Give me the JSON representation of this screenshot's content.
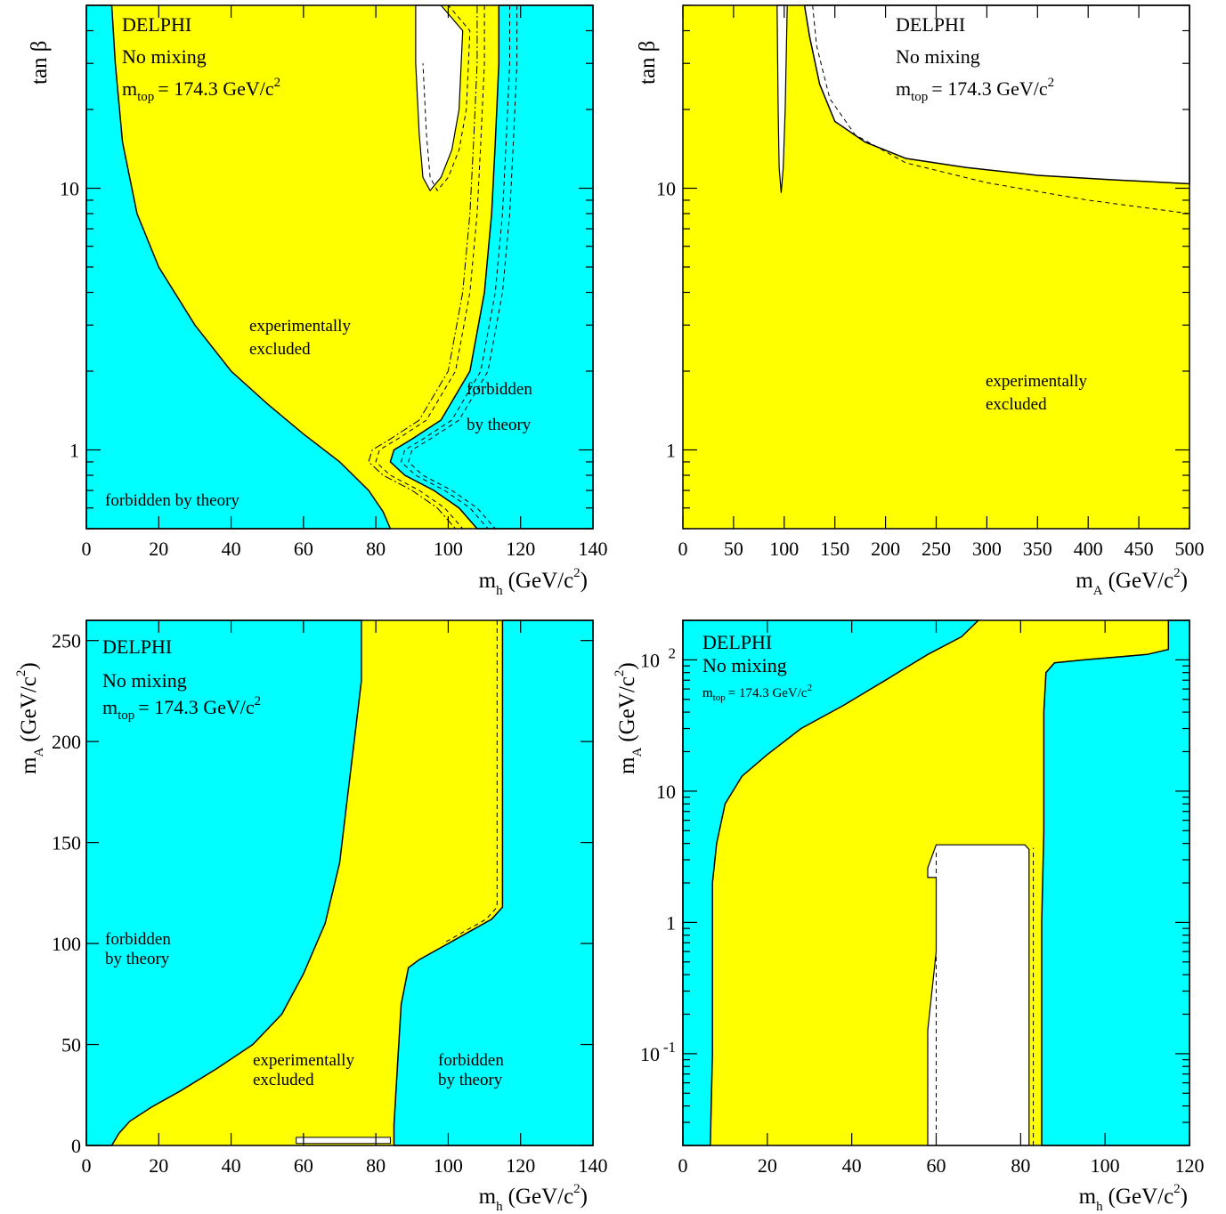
{
  "colors": {
    "allowed": "#ffffff",
    "excluded": "#ffff00",
    "theory": "#00ffff",
    "line": "#000000"
  },
  "chart_data": [
    {
      "type": "area",
      "panel": "top-left",
      "header": [
        "DELPHI",
        "No mixing",
        "m",
        "top",
        "= 174.3 GeV/c",
        "2"
      ],
      "xlabel": {
        "main": "m",
        "sub": "h",
        "unit": "(GeV/c",
        "sup": "2",
        "close": ")"
      },
      "ylabel": "tan β",
      "xlim": [
        0,
        140
      ],
      "ylim": [
        0.5,
        50
      ],
      "yscale": "log",
      "xticks": [
        "0",
        "20",
        "40",
        "60",
        "80",
        "100",
        "120",
        "140"
      ],
      "yticks": [
        "1",
        "10"
      ],
      "annotations": [
        "experimentally",
        "excluded",
        "forbidden",
        "by theory",
        "forbidden by theory"
      ],
      "regions": {
        "theory_left": [
          [
            7,
            50
          ],
          [
            8,
            30
          ],
          [
            10,
            15
          ],
          [
            14,
            8
          ],
          [
            20,
            5
          ],
          [
            30,
            3
          ],
          [
            40,
            2
          ],
          [
            50,
            1.5
          ],
          [
            60,
            1.15
          ],
          [
            70,
            0.9
          ],
          [
            78,
            0.7
          ],
          [
            82,
            0.58
          ],
          [
            84,
            0.5
          ]
        ],
        "theory_right": [
          [
            114,
            50
          ],
          [
            114,
            30
          ],
          [
            113,
            15
          ],
          [
            112,
            8
          ],
          [
            110,
            4
          ],
          [
            106,
            2
          ],
          [
            98,
            1.3
          ],
          [
            90,
            1.1
          ],
          [
            85,
            1
          ],
          [
            84,
            0.9
          ],
          [
            88,
            0.8
          ],
          [
            96,
            0.7
          ],
          [
            103,
            0.6
          ],
          [
            108,
            0.5
          ]
        ],
        "allowed_island": [
          [
            91,
            50
          ],
          [
            98,
            50
          ],
          [
            104,
            40
          ],
          [
            103,
            20
          ],
          [
            101,
            14
          ],
          [
            98,
            11
          ],
          [
            95,
            9.8
          ],
          [
            93,
            11
          ],
          [
            92,
            16
          ],
          [
            91,
            30
          ]
        ]
      }
    },
    {
      "type": "area",
      "panel": "top-right",
      "header": [
        "DELPHI",
        "No mixing",
        "m",
        "top",
        "= 174.3 GeV/c",
        "2"
      ],
      "xlabel": {
        "main": "m",
        "sub": "A",
        "unit": "(GeV/c",
        "sup": "2",
        "close": ")"
      },
      "ylabel": "tan β",
      "xlim": [
        0,
        500
      ],
      "ylim": [
        0.5,
        50
      ],
      "yscale": "log",
      "xticks": [
        "0",
        "50",
        "100",
        "150",
        "200",
        "250",
        "300",
        "350",
        "400",
        "450",
        "500"
      ],
      "yticks": [
        "1",
        "10"
      ],
      "annotations": [
        "experimentally",
        "excluded"
      ],
      "regions": {
        "allowed_top": [
          [
            120,
            50
          ],
          [
            125,
            38
          ],
          [
            135,
            25
          ],
          [
            150,
            18
          ],
          [
            180,
            15
          ],
          [
            220,
            13
          ],
          [
            280,
            12
          ],
          [
            350,
            11.2
          ],
          [
            420,
            10.8
          ],
          [
            500,
            10.4
          ],
          [
            500,
            50
          ]
        ],
        "allowed_strip": [
          [
            93,
            50
          ],
          [
            103,
            50
          ],
          [
            101,
            20
          ],
          [
            99,
            12
          ],
          [
            97,
            9.6
          ],
          [
            95,
            12
          ],
          [
            94,
            20
          ]
        ],
        "dashed_limit": [
          [
            128,
            50
          ],
          [
            132,
            35
          ],
          [
            145,
            22
          ],
          [
            170,
            16
          ],
          [
            220,
            12.5
          ],
          [
            300,
            10.5
          ],
          [
            400,
            9
          ],
          [
            500,
            8
          ]
        ]
      }
    },
    {
      "type": "area",
      "panel": "bottom-left",
      "header": [
        "DELPHI",
        "No mixing",
        "m",
        "top",
        "= 174.3 GeV/c",
        "2"
      ],
      "xlabel": {
        "main": "m",
        "sub": "h",
        "unit": "(GeV/c",
        "sup": "2",
        "close": ")"
      },
      "ylabel": {
        "main": "m",
        "sub": "A",
        "unit": "(GeV/c",
        "sup": "2",
        "close": ")"
      },
      "xlim": [
        0,
        140
      ],
      "ylim": [
        0,
        260
      ],
      "yscale": "linear",
      "xticks": [
        "0",
        "20",
        "40",
        "60",
        "80",
        "100",
        "120",
        "140"
      ],
      "yticks": [
        "0",
        "50",
        "100",
        "150",
        "200",
        "250"
      ],
      "annotations": [
        "forbidden",
        "by theory",
        "experimentally",
        "excluded",
        "forbidden",
        "by theory"
      ],
      "regions": {
        "theory_left": [
          [
            76,
            260
          ],
          [
            76,
            230
          ],
          [
            74,
            200
          ],
          [
            72,
            170
          ],
          [
            70,
            140
          ],
          [
            66,
            110
          ],
          [
            60,
            85
          ],
          [
            54,
            65
          ],
          [
            46,
            50
          ],
          [
            36,
            38
          ],
          [
            26,
            27
          ],
          [
            18,
            19
          ],
          [
            12,
            12
          ],
          [
            9,
            6
          ],
          [
            7,
            0
          ]
        ],
        "theory_right": [
          [
            115,
            260
          ],
          [
            115,
            118
          ],
          [
            112,
            112
          ],
          [
            100,
            100
          ],
          [
            92,
            92
          ],
          [
            89,
            88
          ],
          [
            87,
            70
          ],
          [
            86,
            40
          ],
          [
            85,
            10
          ],
          [
            85,
            0
          ]
        ]
      }
    },
    {
      "type": "area",
      "panel": "bottom-right",
      "header": [
        "DELPHI",
        "No mixing",
        "m",
        "top",
        "= 174.3 GeV/c",
        "2"
      ],
      "xlabel": {
        "main": "m",
        "sub": "h",
        "unit": "(GeV/c",
        "sup": "2",
        "close": ")"
      },
      "ylabel": {
        "main": "m",
        "sub": "A",
        "unit": "(GeV/c",
        "sup": "2",
        "close": ")"
      },
      "xlim": [
        0,
        120
      ],
      "ylim": [
        0.02,
        200
      ],
      "yscale": "log",
      "xticks": [
        "0",
        "20",
        "40",
        "60",
        "80",
        "100",
        "120"
      ],
      "yticks": [
        {
          "base": "10",
          "exp": "-1"
        },
        {
          "base": "1",
          "exp": ""
        },
        {
          "base": "10",
          "exp": ""
        },
        {
          "base": "10",
          "exp": "2"
        }
      ],
      "annotations": [],
      "regions": {
        "theory_left": [
          [
            70,
            200
          ],
          [
            66,
            150
          ],
          [
            58,
            110
          ],
          [
            48,
            70
          ],
          [
            38,
            45
          ],
          [
            28,
            30
          ],
          [
            20,
            19
          ],
          [
            14,
            13
          ],
          [
            10,
            8
          ],
          [
            8,
            4
          ],
          [
            7,
            2
          ],
          [
            7,
            0.5
          ],
          [
            7,
            0.1
          ],
          [
            6.5,
            0.02
          ]
        ],
        "theory_right": [
          [
            115,
            200
          ],
          [
            115,
            120
          ],
          [
            110,
            110
          ],
          [
            95,
            100
          ],
          [
            88,
            95
          ],
          [
            86,
            80
          ],
          [
            85.5,
            40
          ],
          [
            85.5,
            5
          ],
          [
            85,
            1
          ],
          [
            85,
            0.02
          ]
        ],
        "allowed_rect": [
          [
            58,
            0.02
          ],
          [
            58,
            0.15
          ],
          [
            60,
            0.6
          ],
          [
            60,
            2.2
          ],
          [
            58,
            2.2
          ],
          [
            58,
            2.6
          ],
          [
            60,
            3.9
          ],
          [
            81,
            3.9
          ],
          [
            82,
            3.6
          ],
          [
            82,
            0.02
          ]
        ]
      }
    }
  ]
}
